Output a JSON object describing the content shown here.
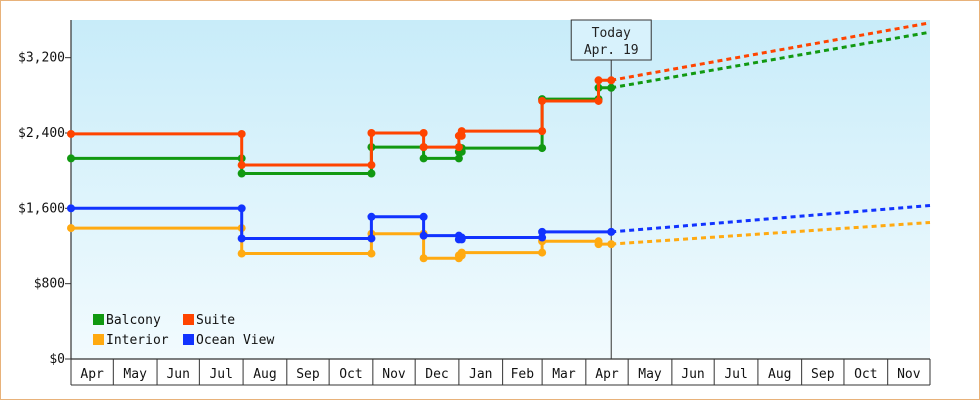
{
  "chart_data": {
    "type": "line",
    "title": "",
    "xlabel": "",
    "ylabel": "",
    "ylim": [
      0,
      3600
    ],
    "yticks": [
      0,
      800,
      1600,
      2400,
      3200
    ],
    "ytick_labels": [
      "$0",
      "$800",
      "$1,600",
      "$2,400",
      "$3,200"
    ],
    "x_axis_months": [
      "Apr",
      "May",
      "Jun",
      "Jul",
      "Aug",
      "Sep",
      "Oct",
      "Nov",
      "Dec",
      "Jan",
      "Feb",
      "Mar",
      "Apr",
      "May",
      "Jun",
      "Jul",
      "Aug",
      "Sep",
      "Oct",
      "Nov"
    ],
    "xlim": [
      "2018-04-01",
      "2019-12-01"
    ],
    "today": {
      "line1": "Today",
      "line2": "Apr. 19",
      "date": "2019-04-19"
    },
    "grid": false,
    "legend_position": "bottom-left",
    "background": {
      "top": "#c8ecf9",
      "bottom": "#f2fbfe"
    },
    "series": [
      {
        "name": "Balcony",
        "color": "#119911",
        "points": [
          [
            "2018-04-01",
            2130
          ],
          [
            "2018-07-31",
            2130
          ],
          [
            "2018-07-31",
            1970
          ],
          [
            "2018-10-31",
            1970
          ],
          [
            "2018-10-31",
            2250
          ],
          [
            "2018-12-07",
            2250
          ],
          [
            "2018-12-07",
            2130
          ],
          [
            "2019-01-01",
            2130
          ],
          [
            "2019-01-01",
            2200
          ],
          [
            "2019-01-03",
            2200
          ],
          [
            "2019-01-03",
            2240
          ],
          [
            "2019-03-01",
            2240
          ],
          [
            "2019-03-01",
            2760
          ],
          [
            "2019-04-10",
            2760
          ],
          [
            "2019-04-10",
            2880
          ],
          [
            "2019-04-19",
            2880
          ]
        ],
        "projection": [
          [
            "2019-04-19",
            2880
          ],
          [
            "2019-12-01",
            3470
          ]
        ]
      },
      {
        "name": "Suite",
        "color": "#ff4400",
        "points": [
          [
            "2018-04-01",
            2390
          ],
          [
            "2018-07-31",
            2390
          ],
          [
            "2018-07-31",
            2060
          ],
          [
            "2018-10-31",
            2060
          ],
          [
            "2018-10-31",
            2400
          ],
          [
            "2018-12-07",
            2400
          ],
          [
            "2018-12-07",
            2250
          ],
          [
            "2019-01-01",
            2250
          ],
          [
            "2019-01-01",
            2370
          ],
          [
            "2019-01-03",
            2370
          ],
          [
            "2019-01-03",
            2420
          ],
          [
            "2019-03-01",
            2420
          ],
          [
            "2019-03-01",
            2740
          ],
          [
            "2019-04-10",
            2740
          ],
          [
            "2019-04-10",
            2960
          ],
          [
            "2019-04-19",
            2960
          ]
        ],
        "projection": [
          [
            "2019-04-19",
            2960
          ],
          [
            "2019-12-01",
            3570
          ]
        ]
      },
      {
        "name": "Interior",
        "color": "#ffaa11",
        "points": [
          [
            "2018-04-01",
            1390
          ],
          [
            "2018-07-31",
            1390
          ],
          [
            "2018-07-31",
            1120
          ],
          [
            "2018-10-31",
            1120
          ],
          [
            "2018-10-31",
            1330
          ],
          [
            "2018-12-07",
            1330
          ],
          [
            "2018-12-07",
            1070
          ],
          [
            "2019-01-01",
            1070
          ],
          [
            "2019-01-01",
            1100
          ],
          [
            "2019-01-03",
            1100
          ],
          [
            "2019-01-03",
            1130
          ],
          [
            "2019-03-01",
            1130
          ],
          [
            "2019-03-01",
            1250
          ],
          [
            "2019-04-10",
            1250
          ],
          [
            "2019-04-10",
            1220
          ],
          [
            "2019-04-19",
            1220
          ]
        ],
        "projection": [
          [
            "2019-04-19",
            1220
          ],
          [
            "2019-12-01",
            1450
          ]
        ]
      },
      {
        "name": "Ocean View",
        "color": "#1133ff",
        "points": [
          [
            "2018-04-01",
            1600
          ],
          [
            "2018-07-31",
            1600
          ],
          [
            "2018-07-31",
            1280
          ],
          [
            "2018-10-31",
            1280
          ],
          [
            "2018-10-31",
            1510
          ],
          [
            "2018-12-07",
            1510
          ],
          [
            "2018-12-07",
            1310
          ],
          [
            "2019-01-01",
            1310
          ],
          [
            "2019-01-01",
            1270
          ],
          [
            "2019-01-03",
            1270
          ],
          [
            "2019-01-03",
            1290
          ],
          [
            "2019-03-01",
            1290
          ],
          [
            "2019-03-01",
            1350
          ],
          [
            "2019-04-19",
            1350
          ]
        ],
        "projection": [
          [
            "2019-04-19",
            1350
          ],
          [
            "2019-12-01",
            1630
          ]
        ]
      }
    ]
  }
}
